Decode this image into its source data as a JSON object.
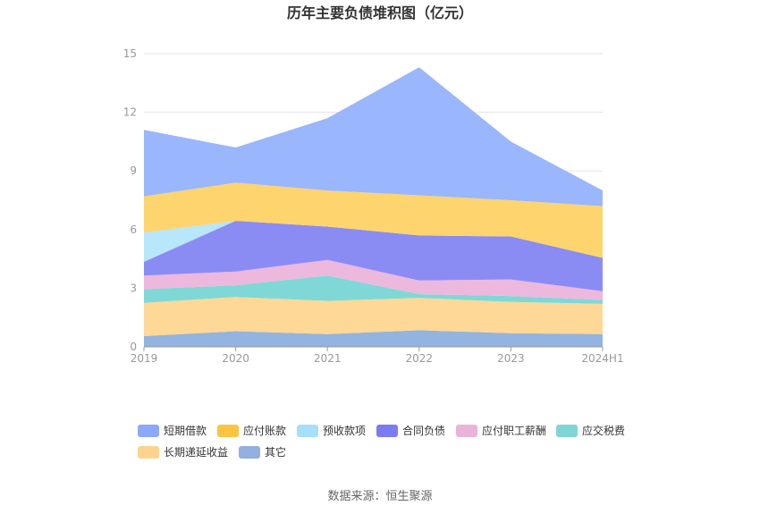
{
  "chart_data": {
    "type": "area",
    "stacked": true,
    "title": "历年主要负债堆积图（亿元）",
    "categories": [
      "2019",
      "2020",
      "2021",
      "2022",
      "2023",
      "2024H1"
    ],
    "ylim": [
      0,
      15
    ],
    "yticks": [
      "0",
      "3",
      "6",
      "9",
      "12",
      "15"
    ],
    "grid": true,
    "legend_position": "bottom",
    "series": [
      {
        "name": "其它",
        "color": "#93b3e0",
        "values": [
          0.55,
          0.8,
          0.65,
          0.85,
          0.7,
          0.65
        ]
      },
      {
        "name": "长期递延收益",
        "color": "#fdd896",
        "values": [
          1.7,
          1.75,
          1.7,
          1.65,
          1.6,
          1.55
        ]
      },
      {
        "name": "应交税费",
        "color": "#7fd8d6",
        "values": [
          0.7,
          0.6,
          1.3,
          0.2,
          0.3,
          0.2
        ]
      },
      {
        "name": "应付职工薪酬",
        "color": "#edb8dd",
        "values": [
          0.7,
          0.7,
          0.8,
          0.7,
          0.85,
          0.45
        ]
      },
      {
        "name": "合同负债",
        "color": "#8a8cf4",
        "values": [
          0.7,
          2.6,
          1.7,
          2.3,
          2.2,
          1.7
        ]
      },
      {
        "name": "预收款项",
        "color": "#b8e6fa",
        "values": [
          1.5,
          0.0,
          0.0,
          0.0,
          0.0,
          0.0
        ]
      },
      {
        "name": "应付账款",
        "color": "#fed46e",
        "values": [
          1.85,
          1.95,
          1.85,
          2.05,
          1.85,
          2.65
        ]
      },
      {
        "name": "短期借款",
        "color": "#9ab6fc",
        "values": [
          3.4,
          1.8,
          3.7,
          6.55,
          3.0,
          0.8
        ]
      }
    ],
    "legend": [
      {
        "name": "短期借款",
        "color": "#8ca8fb"
      },
      {
        "name": "应付账款",
        "color": "#fdc440"
      },
      {
        "name": "预收款项",
        "color": "#a6dffa"
      },
      {
        "name": "合同负债",
        "color": "#7b7cf2"
      },
      {
        "name": "应付职工薪酬",
        "color": "#eab4d8"
      },
      {
        "name": "应交税费",
        "color": "#7fd5d3"
      },
      {
        "name": "长期递延收益",
        "color": "#fdd48f"
      },
      {
        "name": "其它",
        "color": "#93b0de"
      }
    ]
  },
  "source": "数据来源：恒生聚源"
}
